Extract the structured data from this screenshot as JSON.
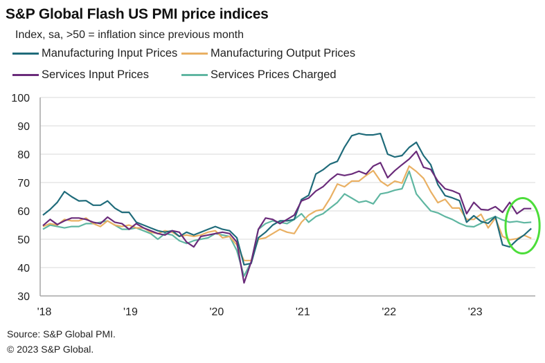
{
  "chart_data": {
    "type": "line",
    "title": "S&P Global Flash US PMI price indices",
    "subtitle": "Index, sa, >50 = inflation since previous month",
    "xlabel": "",
    "ylabel": "",
    "ylim": [
      30,
      100
    ],
    "yticks": [
      30,
      40,
      50,
      60,
      70,
      80,
      90,
      100
    ],
    "xtick_labels": [
      "'18",
      "'19",
      "'20",
      "'21",
      "'22",
      "'23"
    ],
    "x_start": "Jan 2018",
    "x_end": "Sep 2023",
    "frequency": "monthly",
    "grid": "horizontal",
    "legend_position": "top",
    "annotation": {
      "type": "ellipse",
      "label": "highlight latest months",
      "color": "#4cdd3a",
      "x_range": [
        "Jun 2023",
        "Sep 2023"
      ],
      "y_range": [
        45,
        65
      ]
    },
    "series": [
      {
        "name": "Manufacturing Input Prices",
        "color": "#1f6b7a",
        "values": [
          58.5,
          60.5,
          63.0,
          66.8,
          65.0,
          63.5,
          63.6,
          62.0,
          62.0,
          63.5,
          61.0,
          59.5,
          59.5,
          56.0,
          55.0,
          54.0,
          53.0,
          52.5,
          53.0,
          51.0,
          52.5,
          51.5,
          52.5,
          53.5,
          54.5,
          53.5,
          53.0,
          50.5,
          41.0,
          41.5,
          50.5,
          52.5,
          55.0,
          56.5,
          56.5,
          57.0,
          64.0,
          65.5,
          73.0,
          74.5,
          76.5,
          77.5,
          82.5,
          86.5,
          87.3,
          86.8,
          86.8,
          87.3,
          80.0,
          79.0,
          79.5,
          82.4,
          84.2,
          79.5,
          76.3,
          69.3,
          65.4,
          64.6,
          63.6,
          56.0,
          58.3,
          56.3,
          55.6,
          58.0,
          48.0,
          47.3,
          49.7,
          51.5,
          53.8
        ]
      },
      {
        "name": "Manufacturing Output Prices",
        "color": "#e9b063",
        "values": [
          54.5,
          55.5,
          55.0,
          57.0,
          56.5,
          56.5,
          57.5,
          55.5,
          54.5,
          56.5,
          55.0,
          54.5,
          55.0,
          54.0,
          54.0,
          52.5,
          52.0,
          53.0,
          52.5,
          51.0,
          51.5,
          51.0,
          51.5,
          52.5,
          53.0,
          50.5,
          51.0,
          48.0,
          42.5,
          42.5,
          50.0,
          50.5,
          52.0,
          53.5,
          52.5,
          52.0,
          56.0,
          58.5,
          60.0,
          60.5,
          64.5,
          69.5,
          68.5,
          70.5,
          70.5,
          72.5,
          74.2,
          70.5,
          68.8,
          70.5,
          69.8,
          75.8,
          73.9,
          71.5,
          66.8,
          62.9,
          64.1,
          61.0,
          61.0,
          57.0,
          57.0,
          58.8,
          54.0,
          57.5,
          51.0,
          49.8,
          50.2,
          51.4,
          50.3
        ]
      },
      {
        "name": "Services Input Prices",
        "color": "#6a2b7a",
        "values": [
          54.8,
          57.0,
          55.2,
          56.5,
          57.5,
          57.5,
          57.0,
          56.0,
          55.5,
          57.8,
          56.0,
          55.5,
          53.5,
          55.5,
          54.0,
          53.0,
          52.0,
          51.5,
          53.0,
          52.5,
          49.0,
          47.3,
          51.0,
          51.5,
          52.0,
          52.5,
          52.0,
          49.0,
          34.6,
          42.0,
          53.5,
          57.5,
          57.0,
          55.5,
          57.0,
          58.5,
          63.5,
          64.5,
          67.0,
          68.5,
          71.0,
          73.0,
          72.5,
          73.0,
          74.0,
          73.0,
          75.8,
          77.0,
          71.7,
          74.2,
          76.3,
          78.3,
          81.0,
          75.4,
          74.6,
          70.5,
          67.8,
          67.1,
          66.0,
          59.0,
          63.0,
          60.5,
          60.3,
          61.5,
          59.5,
          63.0,
          59.0,
          60.8,
          60.8
        ]
      },
      {
        "name": "Services Prices Charged",
        "color": "#5fb6a1",
        "values": [
          53.5,
          55.0,
          54.5,
          54.0,
          54.5,
          54.5,
          55.5,
          55.5,
          56.0,
          56.5,
          55.0,
          53.5,
          53.5,
          54.0,
          53.0,
          52.0,
          50.0,
          52.0,
          51.5,
          49.5,
          48.5,
          49.5,
          50.0,
          50.5,
          52.0,
          51.5,
          51.0,
          46.0,
          37.0,
          42.0,
          53.5,
          55.5,
          56.5,
          56.0,
          55.5,
          57.0,
          59.0,
          56.0,
          58.0,
          59.0,
          61.0,
          63.0,
          66.0,
          64.5,
          63.0,
          63.5,
          62.5,
          66.0,
          66.5,
          67.3,
          67.8,
          74.0,
          66.0,
          62.9,
          60.0,
          59.3,
          58.0,
          57.0,
          55.6,
          54.6,
          54.4,
          55.6,
          57.0,
          58.0,
          56.8,
          56.0,
          56.3,
          55.8,
          56.0
        ]
      }
    ]
  },
  "footer": {
    "source": "Source: S&P Global PMI.",
    "copyright": "© 2023 S&P Global."
  }
}
